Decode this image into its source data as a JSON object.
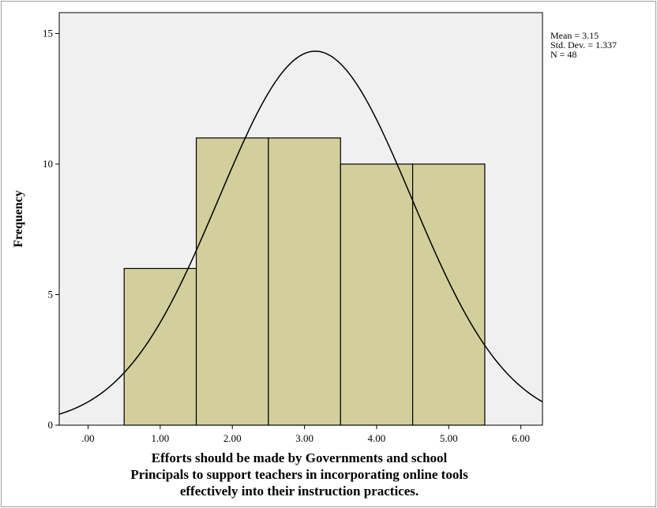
{
  "chart_data": {
    "type": "bar",
    "categories": [
      "1.00",
      "2.00",
      "3.00",
      "4.00",
      "5.00"
    ],
    "bins": [
      {
        "from": 0.5,
        "to": 1.5,
        "value": 6
      },
      {
        "from": 1.5,
        "to": 2.5,
        "value": 11
      },
      {
        "from": 2.5,
        "to": 3.5,
        "value": 11
      },
      {
        "from": 3.5,
        "to": 4.5,
        "value": 10
      },
      {
        "from": 4.5,
        "to": 5.5,
        "value": 10
      }
    ],
    "normal_curve": {
      "mean": 3.15,
      "std_dev": 1.337,
      "n": 48,
      "bin_width": 1
    },
    "xlim": [
      -0.4,
      6.3
    ],
    "ylim": [
      0,
      15.8
    ],
    "x_ticks": [
      0,
      1,
      2,
      3,
      4,
      5,
      6
    ],
    "x_tick_labels": [
      ".00",
      "1.00",
      "2.00",
      "3.00",
      "4.00",
      "5.00",
      "6.00"
    ],
    "y_ticks": [
      0,
      5,
      10,
      15
    ],
    "y_tick_labels": [
      "0",
      "5",
      "10",
      "15"
    ],
    "ylabel": "Frequency",
    "xlabel_lines": [
      "Efforts should be made by Governments and school",
      "Principals to support teachers in incorporating online tools",
      "effectively into their instruction practices."
    ],
    "stats_lines": [
      "Mean = 3.15",
      "Std. Dev. = 1.337",
      "N = 48"
    ],
    "colors": {
      "bar_fill": "#d3cf9c",
      "plot_bg": "#f0f0f0",
      "curve": "#000000"
    },
    "grid": false
  }
}
